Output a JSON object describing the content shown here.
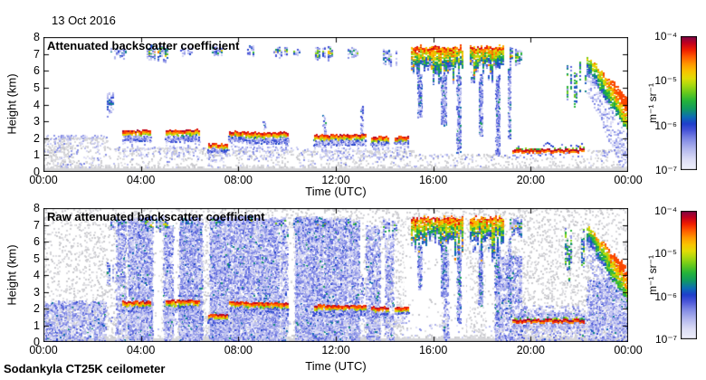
{
  "header": {
    "date": "13 Oct 2016"
  },
  "footer": {
    "instrument": "Sodankyla CT25K ceilometer"
  },
  "axes": {
    "x_label": "Time (UTC)",
    "y_label": "Height (km)",
    "x_ticks": [
      {
        "t": 0,
        "label": "00:00"
      },
      {
        "t": 4,
        "label": "04:00"
      },
      {
        "t": 8,
        "label": "08:00"
      },
      {
        "t": 12,
        "label": "12:00"
      },
      {
        "t": 16,
        "label": "16:00"
      },
      {
        "t": 20,
        "label": "20:00"
      },
      {
        "t": 24,
        "label": "00:00"
      }
    ],
    "y_ticks": [
      {
        "h": 0,
        "label": "0"
      },
      {
        "h": 1,
        "label": "1"
      },
      {
        "h": 2,
        "label": "2"
      },
      {
        "h": 3,
        "label": "3"
      },
      {
        "h": 4,
        "label": "4"
      },
      {
        "h": 5,
        "label": "5"
      },
      {
        "h": 6,
        "label": "6"
      },
      {
        "h": 7,
        "label": "7"
      },
      {
        "h": 8,
        "label": "8"
      }
    ]
  },
  "colorbar": {
    "unit": "m⁻¹ sr⁻¹",
    "tick_labels": [
      "10⁻⁴",
      "10⁻⁵",
      "10⁻⁶",
      "10⁻⁷"
    ],
    "scale": "log",
    "min_value": "1e-7",
    "max_value": "1e-4",
    "stops": [
      [
        0.0,
        "#f2f2fb"
      ],
      [
        0.08,
        "#dddef6"
      ],
      [
        0.16,
        "#b3b7ee"
      ],
      [
        0.24,
        "#7d86e4"
      ],
      [
        0.3,
        "#4854d8"
      ],
      [
        0.35,
        "#1f3ecb"
      ],
      [
        0.4,
        "#0d6db5"
      ],
      [
        0.46,
        "#119a62"
      ],
      [
        0.52,
        "#24b43a"
      ],
      [
        0.58,
        "#66c91d"
      ],
      [
        0.64,
        "#abd90f"
      ],
      [
        0.69,
        "#e2dc06"
      ],
      [
        0.74,
        "#f9c400"
      ],
      [
        0.79,
        "#ff9c00"
      ],
      [
        0.85,
        "#ff5a00"
      ],
      [
        0.9,
        "#f01e00"
      ],
      [
        0.95,
        "#c3001d"
      ],
      [
        1.0,
        "#7c0747"
      ]
    ]
  },
  "colors": {
    "axis": "#000000",
    "background": "#ffffff",
    "speckle_gray": "#d2d2d6",
    "surface_gray": "#d6d6d8"
  },
  "render_seed": 20161013,
  "chart_data": {
    "type": "heatmap",
    "title": "Ceilometer attenuated backscatter, 13 Oct 2016, Sodankyla CT25K",
    "x": {
      "label": "Time (UTC)",
      "range_hours": [
        0,
        24
      ]
    },
    "y": {
      "label": "Height (km)",
      "range_km": [
        0,
        8
      ]
    },
    "z": {
      "label": "m⁻¹ sr⁻¹",
      "scale": "log10",
      "range": [
        -7,
        -4
      ]
    },
    "panels": [
      {
        "title": "Attenuated backscatter coefficient",
        "features": {
          "surface_h": 0.22,
          "gray_boxes": [
            {
              "t0": 0,
              "t1": 2.6,
              "h0": 0.2,
              "h1": 2.05,
              "d": 0.1
            },
            {
              "t0": 0.2,
              "t1": 1.2,
              "h0": 0.2,
              "h1": 1.6,
              "d": 0.12
            },
            {
              "t0": 2.6,
              "t1": 6.8,
              "h0": 0.2,
              "h1": 1.45,
              "d": 0.08
            },
            {
              "t0": 6.8,
              "t1": 15.2,
              "h0": 0.2,
              "h1": 1.3,
              "d": 0.08
            },
            {
              "t0": 15.2,
              "t1": 19.2,
              "h0": 0.2,
              "h1": 1.05,
              "d": 0.06
            },
            {
              "t0": 19.2,
              "t1": 22.3,
              "h0": 0.2,
              "h1": 0.85,
              "d": 0.05
            },
            {
              "t0": 22.3,
              "t1": 24,
              "h0": 0.2,
              "h1": 1.35,
              "d": 0.07
            }
          ],
          "blue_boxes": [
            {
              "t0": 0,
              "t1": 2.6,
              "h0": 0.3,
              "h1": 2.2,
              "d": 0.05
            },
            {
              "t0": 2.6,
              "t1": 15.2,
              "h0": 0.3,
              "h1": 1.5,
              "d": 0.025
            },
            {
              "t0": 15.2,
              "t1": 19.3,
              "h0": 0.3,
              "h1": 1.1,
              "d": 0.02
            },
            {
              "t0": 22.3,
              "t1": 24,
              "h0": 0.3,
              "h1": 1.3,
              "d": 0.03
            }
          ],
          "clouds": [
            {
              "t0": 3.25,
              "t1": 4.4,
              "base": 1.85,
              "top": 2.45
            },
            {
              "t0": 5.0,
              "t1": 6.4,
              "base": 1.8,
              "top": 2.5
            },
            {
              "t0": 6.75,
              "t1": 7.55,
              "base": 1.15,
              "top": 1.65
            },
            {
              "t0": 7.6,
              "t1": 8.3,
              "base": 1.85,
              "top": 2.4
            },
            {
              "t0": 8.3,
              "t1": 10.05,
              "base": 1.7,
              "top": 2.35
            },
            {
              "t0": 11.1,
              "t1": 13.25,
              "base": 1.6,
              "top": 2.2
            },
            {
              "t0": 13.45,
              "t1": 14.15,
              "base": 1.55,
              "top": 2.1
            },
            {
              "t0": 14.4,
              "t1": 14.95,
              "base": 1.7,
              "top": 2.1
            }
          ],
          "high_patches": [
            {
              "t0": 2.6,
              "t1": 2.85,
              "h0": 3.2,
              "h1": 5.0,
              "d": 0.5,
              "vmax": -5.3
            },
            {
              "t0": 2.75,
              "t1": 3.35,
              "h0": 6.7,
              "h1": 7.5,
              "d": 0.5,
              "vmax": -5.2
            },
            {
              "t0": 4.15,
              "t1": 5.05,
              "h0": 6.5,
              "h1": 7.6,
              "d": 0.8,
              "vmax": -4.3
            },
            {
              "t0": 5.6,
              "t1": 6.1,
              "h0": 6.9,
              "h1": 7.5,
              "d": 0.5,
              "vmax": -5.4
            },
            {
              "t0": 6.9,
              "t1": 7.35,
              "h0": 6.9,
              "h1": 7.55,
              "d": 0.6,
              "vmax": -4.8
            },
            {
              "t0": 8.35,
              "t1": 8.6,
              "h0": 6.9,
              "h1": 7.6,
              "d": 0.7,
              "vmax": -4.4
            },
            {
              "t0": 9.35,
              "t1": 9.95,
              "h0": 6.8,
              "h1": 7.5,
              "d": 0.6,
              "vmax": -4.6
            },
            {
              "t0": 10.25,
              "t1": 10.5,
              "h0": 6.9,
              "h1": 7.4,
              "d": 0.5,
              "vmax": -5.0
            },
            {
              "t0": 11.15,
              "t1": 11.85,
              "h0": 6.6,
              "h1": 7.5,
              "d": 0.7,
              "vmax": -4.4
            },
            {
              "t0": 12.4,
              "t1": 12.9,
              "h0": 6.8,
              "h1": 7.45,
              "d": 0.6,
              "vmax": -5.0
            },
            {
              "t0": 13.95,
              "t1": 14.5,
              "h0": 6.3,
              "h1": 7.45,
              "d": 0.6,
              "vmax": -5.0
            },
            {
              "t0": 17.55,
              "t1": 17.75,
              "h0": 5.2,
              "h1": 5.95,
              "d": 0.6,
              "vmax": -5.3
            },
            {
              "t0": 18.25,
              "t1": 18.45,
              "h0": 5.3,
              "h1": 5.95,
              "d": 0.6,
              "vmax": -5.3
            },
            {
              "t0": 19.15,
              "t1": 19.65,
              "h0": 6.2,
              "h1": 7.5,
              "d": 0.9,
              "vmax": -4.3
            }
          ],
          "mass": [
            {
              "t0": 15.1,
              "t1": 17.25,
              "h0": 5.8,
              "h1": 7.6
            },
            {
              "t0": 17.5,
              "t1": 18.85,
              "h0": 5.8,
              "h1": 7.6
            }
          ],
          "down_streaks": [
            {
              "t0": 9.0,
              "t1": 9.1,
              "h0": 2.5,
              "h1": 3.2,
              "d": 0.3
            },
            {
              "t0": 11.45,
              "t1": 11.55,
              "h0": 2.3,
              "h1": 3.4,
              "d": 0.4
            },
            {
              "t0": 13.0,
              "t1": 13.1,
              "h0": 2.3,
              "h1": 4.0,
              "d": 0.4
            },
            {
              "t0": 15.35,
              "t1": 15.5,
              "h0": 3.2,
              "h1": 5.8,
              "d": 0.8
            },
            {
              "t0": 16.3,
              "t1": 16.5,
              "h0": 2.8,
              "h1": 5.8,
              "d": 0.9
            },
            {
              "t0": 16.95,
              "t1": 17.1,
              "h0": 1.2,
              "h1": 5.8,
              "d": 0.8
            },
            {
              "t0": 17.85,
              "t1": 18.0,
              "h0": 2.2,
              "h1": 5.8,
              "d": 0.8
            },
            {
              "t0": 18.55,
              "t1": 18.7,
              "h0": 1.0,
              "h1": 5.8,
              "d": 0.9
            },
            {
              "t0": 19.05,
              "t1": 19.15,
              "h0": 2.0,
              "h1": 6.2,
              "d": 0.7
            }
          ],
          "stratus": {
            "t0": 19.25,
            "t1": 22.2,
            "h": 1.35
          },
          "pre_descend": {
            "t0": 21.4,
            "t1": 22.3,
            "h0": 3.5,
            "h1": 6.9,
            "d": 0.35
          },
          "descend": {
            "t0": 22.3,
            "t1": 24,
            "top0": 6.9,
            "top1": 4.4,
            "thick": 1.5,
            "fringe": 2.2
          }
        }
      },
      {
        "title": "Raw attenuated backscatter coefficient",
        "inherits": 0,
        "features": {
          "global_gray": {
            "d": 0.065
          },
          "overlay_speckle": {
            "d": 0.012
          },
          "white_gaps": [
            {
              "t0": 4.5,
              "t1": 4.85,
              "h0": 0,
              "h1": 7.0
            },
            {
              "t0": 5.32,
              "t1": 5.5,
              "h0": 0,
              "h1": 6.5
            },
            {
              "t0": 10.05,
              "t1": 10.25,
              "h0": 0,
              "h1": 6.8
            },
            {
              "t0": 12.95,
              "t1": 13.15,
              "h0": 0,
              "h1": 6.5
            },
            {
              "t0": 13.85,
              "t1": 14.0,
              "h0": 0,
              "h1": 6.0
            },
            {
              "t0": 14.8,
              "t1": 16.35,
              "h0": 0,
              "h1": 6.0
            },
            {
              "t0": 16.6,
              "t1": 17.35,
              "h0": 0,
              "h1": 5.4
            },
            {
              "t0": 17.4,
              "t1": 17.5,
              "h0": 0,
              "h1": 5.2
            },
            {
              "t0": 18.15,
              "t1": 18.5,
              "h0": 0,
              "h1": 5.0
            }
          ],
          "noise_columns": [
            {
              "t0": 0.0,
              "t1": 2.55,
              "h0": 0,
              "h1": 2.5,
              "d": 0.3
            },
            {
              "t0": 2.95,
              "t1": 3.35,
              "h0": 0,
              "h1": 7.3,
              "d": 0.35
            },
            {
              "t0": 3.45,
              "t1": 4.45,
              "h0": 0,
              "h1": 7.45,
              "d": 0.55
            },
            {
              "t0": 4.9,
              "t1": 5.3,
              "h0": 0,
              "h1": 7.0,
              "d": 0.45
            },
            {
              "t0": 5.55,
              "t1": 6.5,
              "h0": 0,
              "h1": 7.45,
              "d": 0.6
            },
            {
              "t0": 6.8,
              "t1": 7.7,
              "h0": 0,
              "h1": 7.5,
              "d": 0.65
            },
            {
              "t0": 7.75,
              "t1": 8.65,
              "h0": 0,
              "h1": 7.5,
              "d": 0.5
            },
            {
              "t0": 8.7,
              "t1": 9.65,
              "h0": 0,
              "h1": 7.45,
              "d": 0.6
            },
            {
              "t0": 9.7,
              "t1": 10.0,
              "h0": 0,
              "h1": 7.0,
              "d": 0.35
            },
            {
              "t0": 10.3,
              "t1": 11.45,
              "h0": 0,
              "h1": 7.5,
              "d": 0.6
            },
            {
              "t0": 11.5,
              "t1": 12.45,
              "h0": 0,
              "h1": 7.45,
              "d": 0.5
            },
            {
              "t0": 12.5,
              "t1": 12.95,
              "h0": 0,
              "h1": 7.3,
              "d": 0.55
            },
            {
              "t0": 13.2,
              "t1": 13.8,
              "h0": 0,
              "h1": 7.0,
              "d": 0.35
            },
            {
              "t0": 14.0,
              "t1": 14.35,
              "h0": 0,
              "h1": 6.5,
              "d": 0.3
            },
            {
              "t0": 16.4,
              "t1": 16.6,
              "h0": 0,
              "h1": 5.5,
              "d": 0.4
            },
            {
              "t0": 18.5,
              "t1": 19.6,
              "h0": 0,
              "h1": 5.2,
              "d": 0.3
            },
            {
              "t0": 19.6,
              "t1": 22.25,
              "h0": 0,
              "h1": 2.2,
              "d": 0.12
            },
            {
              "t0": 22.3,
              "t1": 24,
              "h0": 0,
              "h1": 3.8,
              "d": 0.35
            }
          ],
          "stratus_band": {
            "t0": 19.3,
            "t1": 22.25,
            "h0": 0.85,
            "h1": 1.8,
            "d": 0.35
          }
        }
      }
    ]
  }
}
